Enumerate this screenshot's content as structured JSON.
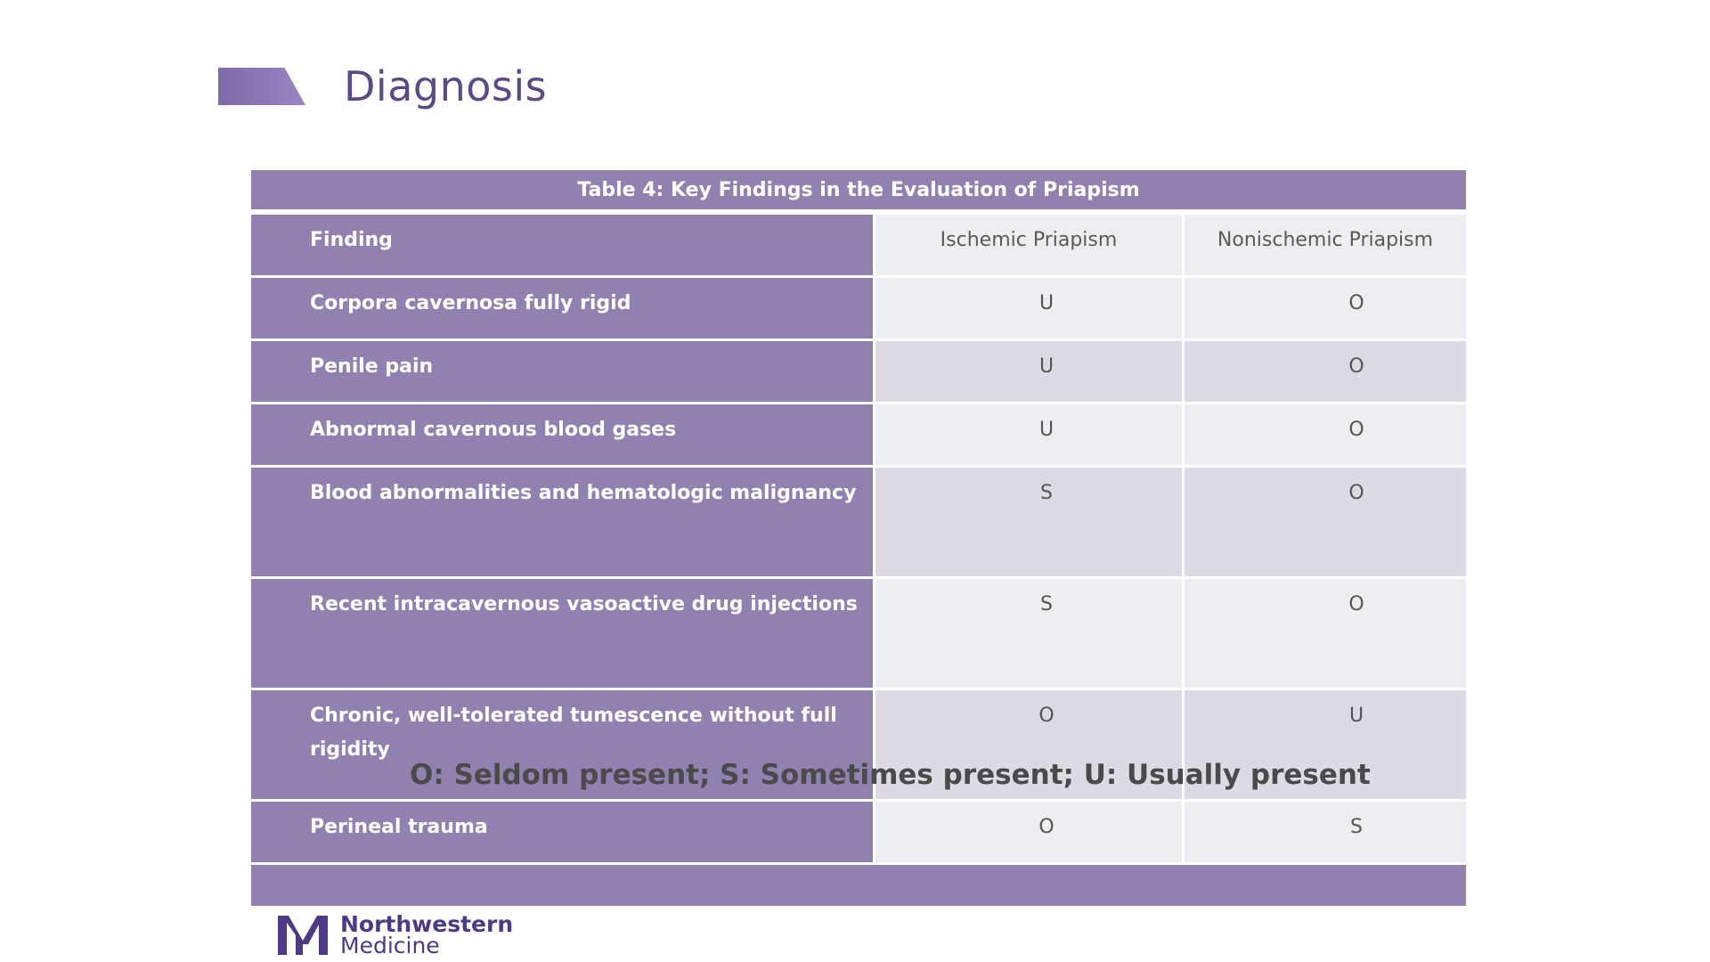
{
  "slide": {
    "title": "Diagnosis"
  },
  "table": {
    "caption": "Table 4: Key Findings in the Evaluation of Priapism",
    "headers": [
      "Finding",
      "Ischemic Priapism",
      "Nonischemic Priapism"
    ],
    "rows": [
      {
        "finding": "Corpora cavernosa fully rigid",
        "ischemic": "U",
        "nonischemic": "O"
      },
      {
        "finding": "Penile pain",
        "ischemic": "U",
        "nonischemic": "O"
      },
      {
        "finding": "Abnormal cavernous blood gases",
        "ischemic": "U",
        "nonischemic": "O"
      },
      {
        "finding": "Blood abnormalities and hematologic malignancy",
        "ischemic": "S",
        "nonischemic": "O"
      },
      {
        "finding": "Recent intracavernous vasoactive drug injections",
        "ischemic": "S",
        "nonischemic": "O"
      },
      {
        "finding": "Chronic, well-tolerated tumescence without full rigidity",
        "ischemic": "O",
        "nonischemic": "U"
      },
      {
        "finding": "Perineal trauma",
        "ischemic": "O",
        "nonischemic": "S"
      }
    ]
  },
  "legend": "O: Seldom present; S: Sometimes present; U: Usually present",
  "logo": {
    "line1": "Northwestern",
    "line2": "Medicine"
  },
  "colors": {
    "accent": "#9181b0",
    "title": "#5b4a86",
    "cell_light": "#eeedf2",
    "cell_dark": "#dddae3"
  }
}
